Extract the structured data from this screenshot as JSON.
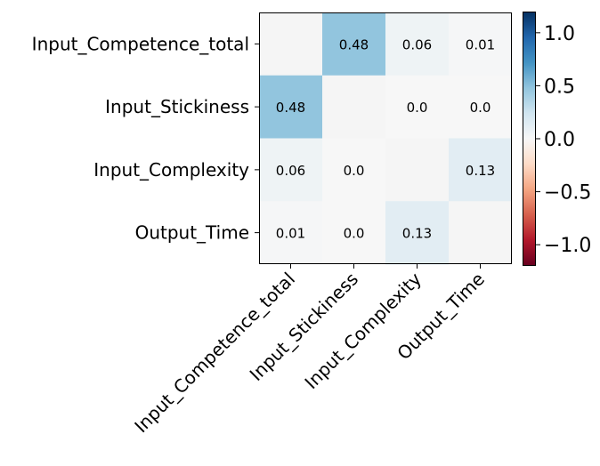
{
  "chart_data": {
    "type": "heatmap",
    "title": "",
    "xlabel": "",
    "ylabel": "",
    "row_labels": [
      "Input_Competence_total",
      "Input_Stickiness",
      "Input_Complexity",
      "Output_Time"
    ],
    "col_labels": [
      "Input_Competence_total",
      "Input_Stickiness",
      "Input_Complexity",
      "Output_Time"
    ],
    "values": [
      [
        0.0,
        0.48,
        0.06,
        0.01
      ],
      [
        0.48,
        0.0,
        0.0,
        0.0
      ],
      [
        0.06,
        0.0,
        0.0,
        0.13
      ],
      [
        0.01,
        0.0,
        0.13,
        0.0
      ]
    ],
    "cell_labels": [
      [
        "",
        "0.48",
        "0.06",
        "0.01"
      ],
      [
        "0.48",
        "",
        "0.0",
        "0.0"
      ],
      [
        "0.06",
        "0.0",
        "",
        "0.13"
      ],
      [
        "0.01",
        "0.0",
        "0.13",
        ""
      ]
    ],
    "colormap": "RdBu",
    "vmin": -1.2,
    "vmax": 1.2,
    "colorbar_ticks": [
      1.0,
      0.5,
      0.0,
      -0.5,
      -1.0
    ],
    "colorbar_tick_labels": [
      "1.0",
      "0.5",
      "0.0",
      "−0.5",
      "−1.0"
    ],
    "colors": {
      "diagonal": "#f5f5f5",
      "frame": "#000000"
    }
  }
}
